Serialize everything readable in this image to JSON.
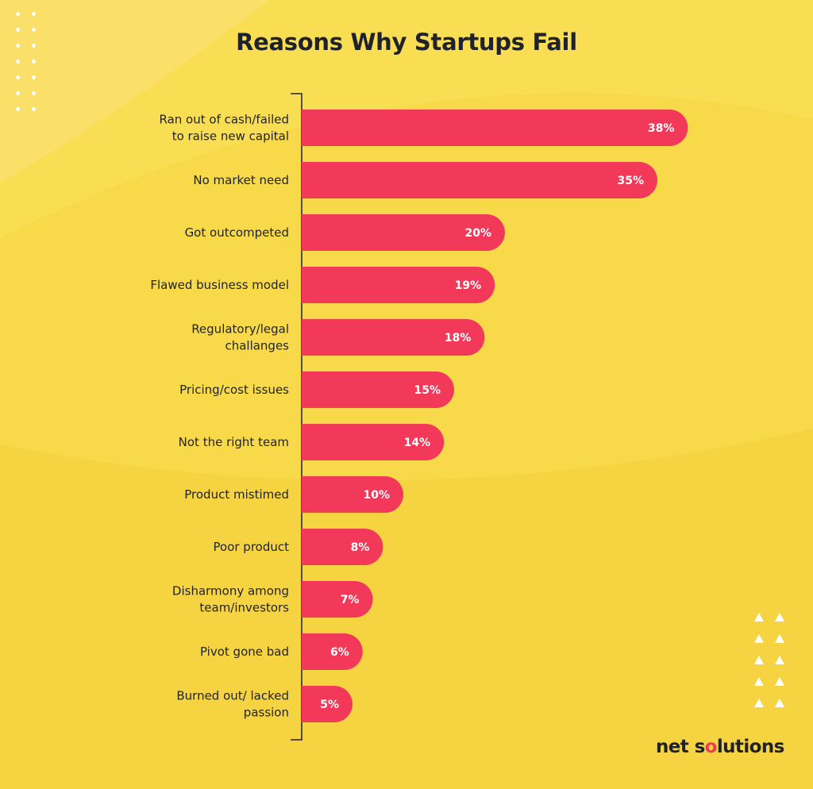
{
  "chart_data": {
    "type": "bar",
    "orientation": "horizontal",
    "title": "Reasons Why Startups Fail",
    "categories": [
      [
        "Ran out of cash/failed",
        "to raise new capital"
      ],
      [
        "No market need"
      ],
      [
        "Got outcompeted"
      ],
      [
        "Flawed business model"
      ],
      [
        "Regulatory/legal",
        "challanges"
      ],
      [
        "Pricing/cost issues"
      ],
      [
        "Not the right team"
      ],
      [
        "Product mistimed"
      ],
      [
        "Poor product"
      ],
      [
        "Disharmony among",
        "team/investors"
      ],
      [
        "Pivot gone bad"
      ],
      [
        "Burned out/ lacked",
        "passion"
      ]
    ],
    "values": [
      38,
      35,
      20,
      19,
      18,
      15,
      14,
      10,
      8,
      7,
      6,
      5
    ],
    "value_labels": [
      "38%",
      "35%",
      "20%",
      "19%",
      "18%",
      "15%",
      "14%",
      "10%",
      "8%",
      "7%",
      "6%",
      "5%"
    ],
    "unit": "%",
    "bar_color": "#f2395a",
    "grid": false,
    "legend": "none"
  },
  "brand": {
    "logo_text": "net solutions",
    "text_color": "#1f2329",
    "accent_color": "#ef3b57"
  },
  "colors": {
    "background": "#f9dd53",
    "text": "#1f2329"
  }
}
